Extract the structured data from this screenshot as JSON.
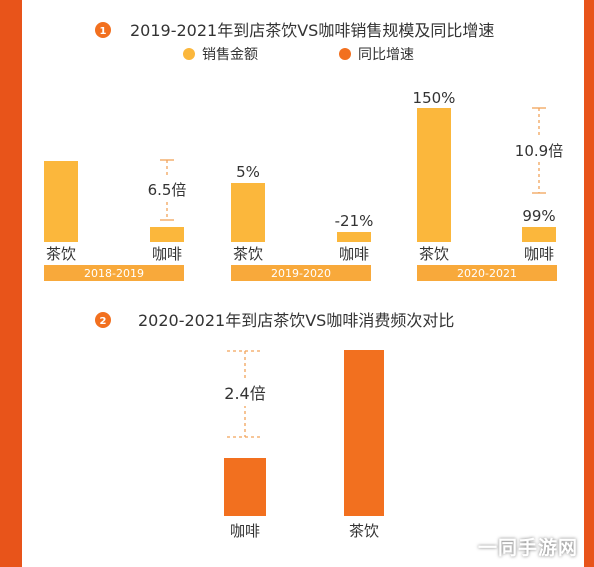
{
  "colors": {
    "sales": "#fbb73c",
    "growth": "#f2701f",
    "text": "#333333",
    "dash": "#f2a35a",
    "bg": "#e8541a"
  },
  "section1": {
    "number": "1",
    "title": "2019-2021年到店茶饮VS咖啡销售规模及同比增速",
    "legend": [
      {
        "label": "销售金额",
        "color": "#fbb73c"
      },
      {
        "label": "同比增速",
        "color": "#f2701f"
      }
    ]
  },
  "section2": {
    "number": "2",
    "title": "2020-2021年到店茶饮VS咖啡消费频次对比"
  },
  "watermark": "一同手游网",
  "chart_data": [
    {
      "type": "bar",
      "title": "2019-2021年到店茶饮VS咖啡销售规模及同比增速",
      "groups": [
        {
          "period": "2018-2019",
          "bars": [
            {
              "category": "茶饮",
              "value": 6.5,
              "label": ""
            },
            {
              "category": "咖啡",
              "value": 1,
              "label": ""
            }
          ],
          "annotation": "6.5倍"
        },
        {
          "period": "2019-2020",
          "bars": [
            {
              "category": "茶饮",
              "value": 5,
              "label": "5%"
            },
            {
              "category": "咖啡",
              "value": -21,
              "label": "-21%"
            }
          ],
          "annotation": ""
        },
        {
          "period": "2020-2021",
          "bars": [
            {
              "category": "茶饮",
              "value": 150,
              "label": "150%"
            },
            {
              "category": "咖啡",
              "value": 99,
              "label": "99%"
            }
          ],
          "annotation": "10.9倍"
        }
      ]
    },
    {
      "type": "bar",
      "title": "2020-2021年到店茶饮VS咖啡消费频次对比",
      "categories": [
        "咖啡",
        "茶饮"
      ],
      "values": [
        1,
        2.4
      ],
      "annotation": "2.4倍"
    }
  ]
}
